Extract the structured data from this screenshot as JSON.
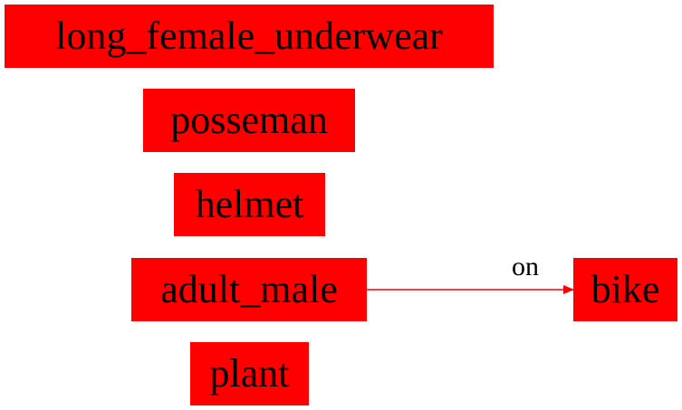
{
  "colors": {
    "node_fill": "#ff0000",
    "edge": "#ff0000",
    "text": "#000000",
    "background": "#ffffff"
  },
  "nodes": {
    "long_female_underwear": "long_female_underwear",
    "posseman": "posseman",
    "helmet": "helmet",
    "adult_male": "adult_male",
    "plant": "plant",
    "bike": "bike"
  },
  "edges": [
    {
      "from": "adult_male",
      "to": "bike",
      "label": "on"
    }
  ]
}
